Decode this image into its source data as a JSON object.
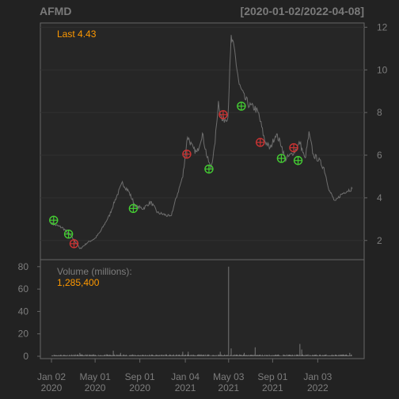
{
  "chart_data": {
    "type": "line",
    "title": "AFMD",
    "date_range": "[2020-01-02/2022-04-08]",
    "last_label": "Last 4.43",
    "colors": {
      "background": "#222222",
      "panel": "#262626",
      "price": "#6e6e6e",
      "buy": "#44cc33",
      "sell": "#cc3333",
      "accent": "#ff9900",
      "text": "#7d7d7d"
    },
    "price_axis": {
      "ylim": [
        1.1,
        12.2
      ],
      "ticks": [
        "2",
        "4",
        "6",
        "8",
        "10",
        "12"
      ],
      "position": "right"
    },
    "price_series": {
      "name": "AFMD",
      "x": [
        "2020-01-02",
        "2020-02-01",
        "2020-02-20",
        "2020-03-10",
        "2020-03-20",
        "2020-04-10",
        "2020-05-01",
        "2020-05-15",
        "2020-06-10",
        "2020-06-25",
        "2020-07-15",
        "2020-08-01",
        "2020-08-20",
        "2020-09-10",
        "2020-10-01",
        "2020-10-20",
        "2020-11-10",
        "2020-11-25",
        "2020-12-10",
        "2020-12-28",
        "2021-01-10",
        "2021-01-25",
        "2021-02-05",
        "2021-02-20",
        "2021-03-05",
        "2021-03-15",
        "2021-03-25",
        "2021-04-05",
        "2021-04-15",
        "2021-05-01",
        "2021-05-10",
        "2021-05-20",
        "2021-06-01",
        "2021-06-15",
        "2021-07-01",
        "2021-07-15",
        "2021-07-25",
        "2021-08-10",
        "2021-08-25",
        "2021-09-10",
        "2021-09-25",
        "2021-10-05",
        "2021-10-20",
        "2021-11-01",
        "2021-11-15",
        "2021-11-29",
        "2021-12-10",
        "2021-12-22",
        "2022-01-05",
        "2022-01-20",
        "2022-02-05",
        "2022-02-20",
        "2022-03-05",
        "2022-03-20",
        "2022-04-08"
      ],
      "y": [
        2.8,
        2.6,
        2.3,
        1.9,
        1.6,
        1.9,
        2.1,
        2.4,
        3.2,
        3.9,
        4.7,
        4.3,
        3.6,
        3.5,
        3.8,
        3.3,
        3.2,
        3.1,
        4.0,
        5.0,
        6.9,
        6.3,
        6.1,
        7.0,
        5.9,
        5.4,
        6.3,
        8.5,
        7.6,
        7.8,
        11.5,
        10.8,
        9.3,
        8.7,
        8.3,
        8.2,
        7.9,
        6.7,
        6.3,
        7.0,
        6.5,
        5.8,
        6.0,
        6.2,
        6.6,
        5.8,
        7.0,
        6.0,
        5.8,
        5.4,
        4.3,
        3.8,
        4.1,
        4.3,
        4.43
      ]
    },
    "markers": [
      {
        "type": "buy",
        "x": "2020-01-08",
        "y": 2.95
      },
      {
        "type": "buy",
        "x": "2020-02-18",
        "y": 2.3
      },
      {
        "type": "sell",
        "x": "2020-03-04",
        "y": 1.85
      },
      {
        "type": "buy",
        "x": "2020-08-14",
        "y": 3.5
      },
      {
        "type": "sell",
        "x": "2021-01-08",
        "y": 6.05
      },
      {
        "type": "buy",
        "x": "2021-03-10",
        "y": 5.35
      },
      {
        "type": "sell",
        "x": "2021-04-18",
        "y": 7.9
      },
      {
        "type": "buy",
        "x": "2021-06-07",
        "y": 8.3
      },
      {
        "type": "sell",
        "x": "2021-07-29",
        "y": 6.6
      },
      {
        "type": "buy",
        "x": "2021-09-25",
        "y": 5.85
      },
      {
        "type": "sell",
        "x": "2021-10-29",
        "y": 6.35
      },
      {
        "type": "buy",
        "x": "2021-11-10",
        "y": 5.75
      }
    ],
    "volume": {
      "label": "Volume (millions):",
      "last": "1,285,400",
      "ylim": [
        0,
        82
      ],
      "ticks": [
        "0",
        "20",
        "40",
        "60",
        "80"
      ],
      "spikes": [
        {
          "x": "2020-03-20",
          "v": 3
        },
        {
          "x": "2020-06-20",
          "v": 5
        },
        {
          "x": "2020-07-10",
          "v": 3
        },
        {
          "x": "2020-12-28",
          "v": 4
        },
        {
          "x": "2021-01-12",
          "v": 4
        },
        {
          "x": "2021-04-10",
          "v": 4
        },
        {
          "x": "2021-05-03",
          "v": 80
        },
        {
          "x": "2021-05-10",
          "v": 7
        },
        {
          "x": "2021-06-15",
          "v": 3
        },
        {
          "x": "2021-07-15",
          "v": 8
        },
        {
          "x": "2021-11-15",
          "v": 11
        },
        {
          "x": "2021-11-20",
          "v": 6
        },
        {
          "x": "2022-04-01",
          "v": 3
        }
      ]
    },
    "x_ticks": [
      {
        "d": "2020-01-02",
        "l1": "Jan 02",
        "l2": "2020"
      },
      {
        "d": "2020-05-01",
        "l1": "May 01",
        "l2": "2020"
      },
      {
        "d": "2020-09-01",
        "l1": "Sep 01",
        "l2": "2020"
      },
      {
        "d": "2021-01-04",
        "l1": "Jan 04",
        "l2": "2021"
      },
      {
        "d": "2021-05-03",
        "l1": "May 03",
        "l2": "2021"
      },
      {
        "d": "2021-09-01",
        "l1": "Sep 01",
        "l2": "2021"
      },
      {
        "d": "2022-01-03",
        "l1": "Jan 03",
        "l2": "2022"
      }
    ]
  }
}
